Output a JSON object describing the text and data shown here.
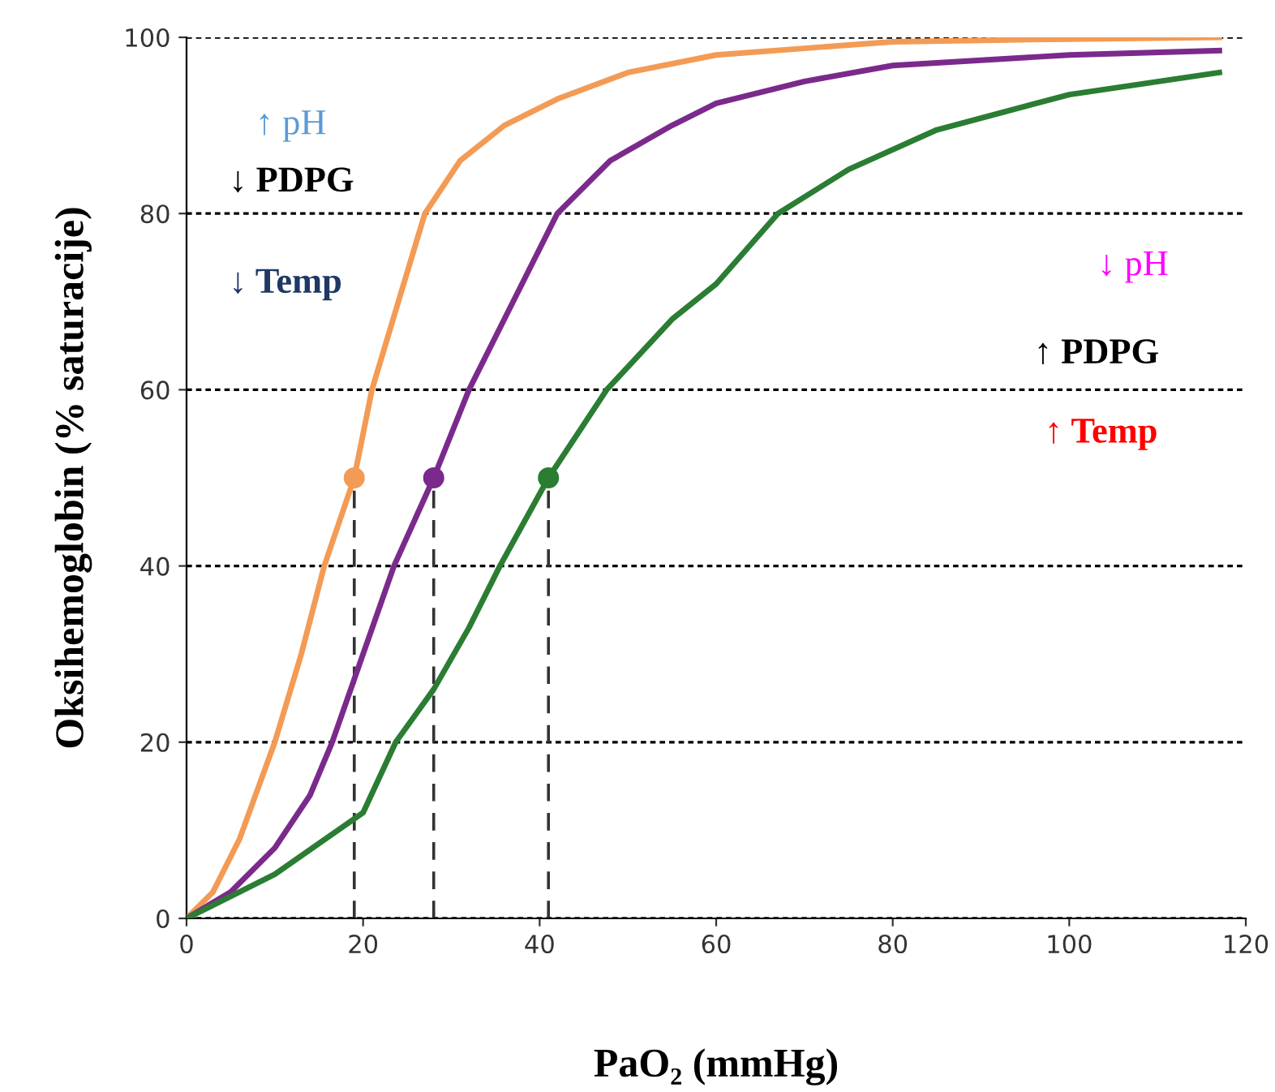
{
  "chart_data": {
    "type": "line",
    "xlabel": "PaO₂ (mmHg)",
    "ylabel": "Oksihemoglobin (% saturacije)",
    "xlim": [
      0,
      120
    ],
    "ylim": [
      0,
      100
    ],
    "xticks": [
      0,
      20,
      40,
      60,
      80,
      100,
      120
    ],
    "yticks": [
      0,
      20,
      40,
      60,
      80,
      100
    ],
    "grid": "y",
    "legend": false,
    "series": [
      {
        "color": "#f39b55",
        "x": [
          0,
          3,
          6,
          10,
          13,
          15.6,
          19,
          21,
          24,
          27,
          31,
          36,
          42,
          50,
          60,
          80,
          100,
          117
        ],
        "values": [
          0,
          3,
          9,
          20,
          30,
          40,
          50,
          60,
          70,
          80,
          86,
          90,
          93,
          96,
          98,
          99.5,
          99.8,
          100
        ]
      },
      {
        "color": "#7b2a8c",
        "x": [
          0,
          5,
          10,
          14,
          16.5,
          20,
          23.5,
          28,
          32,
          37,
          42,
          48,
          55,
          60,
          70,
          80,
          100,
          117
        ],
        "values": [
          0,
          3,
          8,
          14,
          20,
          30,
          40,
          50,
          60,
          70,
          80,
          86,
          90,
          92.5,
          95,
          96.8,
          98,
          98.5
        ]
      },
      {
        "color": "#2a7d32",
        "x": [
          0,
          5,
          10,
          15,
          20,
          23.7,
          28,
          32,
          35.5,
          41,
          47.6,
          55,
          60,
          67,
          75,
          85,
          100,
          117
        ],
        "values": [
          0,
          2.5,
          5,
          8.5,
          12,
          20,
          26,
          33,
          40,
          50,
          60,
          68,
          72,
          80,
          85,
          89.5,
          93.5,
          96
        ]
      },
      {
        "type": "scatter",
        "color": "#f39b55",
        "marker": "circle",
        "x": [
          19
        ],
        "values": [
          50
        ]
      },
      {
        "type": "scatter",
        "color": "#7b2a8c",
        "marker": "circle",
        "x": [
          28
        ],
        "values": [
          50
        ]
      },
      {
        "type": "scatter",
        "color": "#2a7d32",
        "marker": "circle",
        "x": [
          41
        ],
        "values": [
          50
        ]
      },
      {
        "color": "#333333",
        "line_style": "dashed",
        "x": [
          19,
          19
        ],
        "values": [
          0,
          50
        ]
      },
      {
        "color": "#333333",
        "line_style": "dashed",
        "x": [
          28,
          28
        ],
        "values": [
          0,
          50
        ]
      },
      {
        "color": "#333333",
        "line_style": "dashed",
        "x": [
          41,
          41
        ],
        "values": [
          0,
          50
        ]
      }
    ],
    "annotations": [
      "↑ pH",
      "↓ PDPG",
      "↓ Temp",
      "↓ pH",
      "↑ PDPG",
      "↑ Temp"
    ]
  }
}
